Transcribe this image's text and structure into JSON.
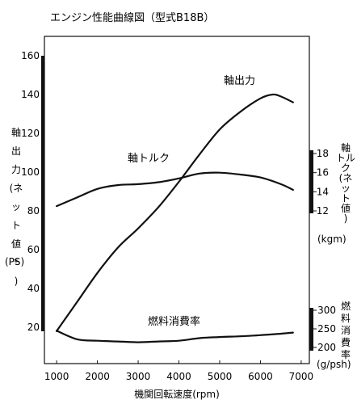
{
  "chart_data": {
    "type": "line",
    "title": "エンジン性能曲線図（型式B18B）",
    "xlabel": "機関回転速度(rpm)",
    "xlim": [
      700,
      7200
    ],
    "x_ticks": [
      1000,
      2000,
      3000,
      4000,
      5000,
      6000,
      7000
    ],
    "left_axis": {
      "label_chars": [
        "軸",
        "出",
        "力",
        "(ネ",
        "ッ",
        "ト",
        "値",
        "*",
        ")"
      ],
      "unit": "(PS)",
      "ylim": [
        15,
        165
      ],
      "ticks": [
        20,
        40,
        60,
        80,
        100,
        120,
        140,
        160
      ]
    },
    "torque_axis": {
      "label_chars": [
        "軸",
        "トル",
        "ク",
        "(ネ",
        "ッ",
        "ト",
        "値",
        ")"
      ],
      "unit": "(kgm)",
      "ticks": [
        12,
        14,
        16,
        18
      ]
    },
    "fuel_axis": {
      "label_chars": [
        "燃",
        "料",
        "消",
        "費",
        "率"
      ],
      "unit": "(g/psh)",
      "ticks": [
        200,
        250,
        300
      ]
    },
    "series": [
      {
        "name": "軸出力",
        "axis": "left",
        "x": [
          1000,
          1500,
          2000,
          2500,
          3000,
          3500,
          4000,
          4500,
          5000,
          5500,
          6000,
          6300,
          6500,
          6800
        ],
        "values": [
          18,
          33,
          48,
          61,
          71,
          82,
          95,
          109,
          122,
          131,
          138,
          140,
          139,
          136
        ]
      },
      {
        "name": "軸トルク",
        "axis": "torque",
        "x": [
          1000,
          1500,
          2000,
          2500,
          3000,
          3500,
          4000,
          4500,
          5000,
          5500,
          6000,
          6500,
          6800
        ],
        "values": [
          12.5,
          13.4,
          14.3,
          14.7,
          14.8,
          15.0,
          15.4,
          15.9,
          16.0,
          15.8,
          15.5,
          14.8,
          14.2
        ]
      },
      {
        "name": "燃料消費率",
        "axis": "fuel",
        "x": [
          1000,
          1500,
          2000,
          2500,
          3000,
          3500,
          4000,
          4500,
          5000,
          5500,
          6000,
          6500,
          6800
        ],
        "values": [
          245,
          222,
          218,
          216,
          214,
          216,
          218,
          225,
          228,
          230,
          233,
          237,
          240
        ]
      }
    ]
  }
}
